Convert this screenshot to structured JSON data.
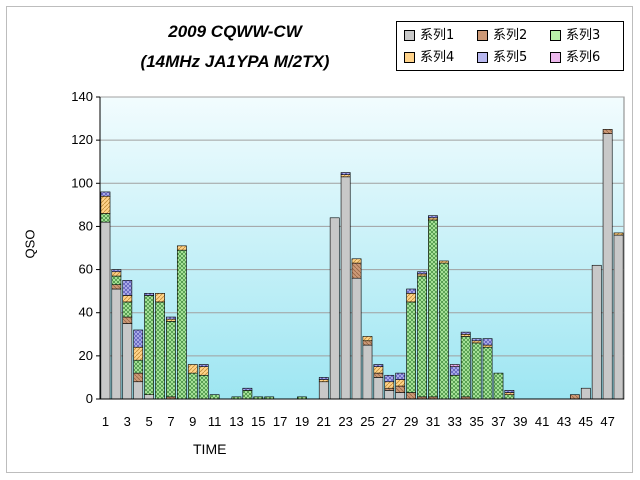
{
  "title_line1": "2009 CQWW-CW",
  "title_line2": "(14MHz JA1YPA  M/2TX)",
  "colors": {
    "plot_bg_top": "#f2fcfe",
    "plot_bg_bottom": "#9ee6f2",
    "series1": "#c8c8c8",
    "series2": "#cc9977",
    "series3": "#b8f0a8",
    "series4": "#ffd38a",
    "series5": "#b8b8f0",
    "series6": "#ecb8ec"
  },
  "chart_data": {
    "type": "bar",
    "stacked": true,
    "title": "2009 CQWW-CW\n(14MHz JA1YPA  M/2TX)",
    "xlabel": "TIME",
    "ylabel": "QSO",
    "ylim": [
      0,
      140
    ],
    "yticks": [
      0,
      20,
      40,
      60,
      80,
      100,
      120,
      140
    ],
    "grid": "horizontal",
    "legend_position": "top-right",
    "categories": [
      "1",
      "2",
      "3",
      "4",
      "5",
      "6",
      "7",
      "8",
      "9",
      "10",
      "11",
      "12",
      "13",
      "14",
      "15",
      "16",
      "17",
      "18",
      "19",
      "20",
      "21",
      "22",
      "23",
      "24",
      "25",
      "26",
      "27",
      "28",
      "29",
      "30",
      "31",
      "32",
      "33",
      "34",
      "35",
      "36",
      "37",
      "38",
      "39",
      "40",
      "41",
      "42",
      "43",
      "44",
      "45",
      "46",
      "47",
      "48"
    ],
    "xtick_labels": [
      "1",
      "3",
      "5",
      "7",
      "9",
      "11",
      "13",
      "15",
      "17",
      "19",
      "21",
      "23",
      "25",
      "27",
      "29",
      "31",
      "33",
      "35",
      "37",
      "39",
      "41",
      "43",
      "45",
      "47"
    ],
    "series": [
      {
        "name": "系列1",
        "color": "#c8c8c8",
        "values": [
          82,
          51,
          35,
          8,
          2,
          0,
          0,
          0,
          0,
          0,
          0,
          0,
          0,
          0,
          0,
          0,
          0,
          0,
          0,
          0,
          8,
          84,
          103,
          56,
          25,
          10,
          4,
          3,
          0,
          0,
          0,
          0,
          0,
          0,
          0,
          0,
          0,
          0,
          0,
          0,
          0,
          0,
          0,
          0,
          5,
          62,
          123,
          76
        ]
      },
      {
        "name": "系列2",
        "color": "#cc9977",
        "values": [
          0,
          2,
          3,
          4,
          0,
          0,
          1,
          0,
          0,
          0,
          0,
          0,
          0,
          0,
          0,
          0,
          0,
          0,
          0,
          0,
          0,
          0,
          0,
          7,
          2,
          2,
          1,
          3,
          3,
          1,
          1,
          0,
          0,
          1,
          0,
          0,
          0,
          0,
          0,
          0,
          0,
          0,
          0,
          2,
          0,
          0,
          2,
          0
        ]
      },
      {
        "name": "系列3",
        "color": "#b8f0a8",
        "values": [
          4,
          4,
          7,
          6,
          46,
          45,
          35,
          69,
          12,
          11,
          2,
          0,
          1,
          4,
          1,
          1,
          0,
          0,
          1,
          0,
          0,
          0,
          0,
          0,
          0,
          0,
          0,
          0,
          42,
          56,
          82,
          63,
          11,
          28,
          26,
          24,
          12,
          2,
          0,
          0,
          0,
          0,
          0,
          0,
          0,
          0,
          0,
          0
        ]
      },
      {
        "name": "系列4",
        "color": "#ffd38a",
        "values": [
          8,
          2,
          3,
          6,
          0,
          4,
          1,
          2,
          4,
          4,
          0,
          0,
          0,
          0,
          0,
          0,
          0,
          0,
          0,
          0,
          1,
          0,
          1,
          2,
          2,
          3,
          3,
          3,
          4,
          1,
          1,
          1,
          0,
          1,
          1,
          1,
          0,
          1,
          0,
          0,
          0,
          0,
          0,
          0,
          0,
          0,
          0,
          1
        ]
      },
      {
        "name": "系列5",
        "color": "#b8b8f0",
        "values": [
          2,
          1,
          7,
          8,
          1,
          0,
          1,
          0,
          0,
          1,
          0,
          0,
          0,
          1,
          0,
          0,
          0,
          0,
          0,
          0,
          1,
          0,
          1,
          0,
          0,
          1,
          3,
          3,
          2,
          1,
          1,
          0,
          4,
          1,
          1,
          3,
          0,
          1,
          0,
          0,
          0,
          0,
          0,
          0,
          0,
          0,
          0,
          0
        ]
      },
      {
        "name": "系列6",
        "color": "#ecb8ec",
        "values": [
          0,
          0,
          0,
          0,
          0,
          0,
          0,
          0,
          0,
          0,
          0,
          0,
          0,
          0,
          0,
          0,
          0,
          0,
          0,
          0,
          0,
          0,
          0,
          0,
          0,
          0,
          0,
          0,
          0,
          0,
          0,
          0,
          1,
          0,
          0,
          0,
          0,
          0,
          0,
          0,
          0,
          0,
          0,
          0,
          0,
          0,
          0,
          0
        ]
      }
    ]
  }
}
